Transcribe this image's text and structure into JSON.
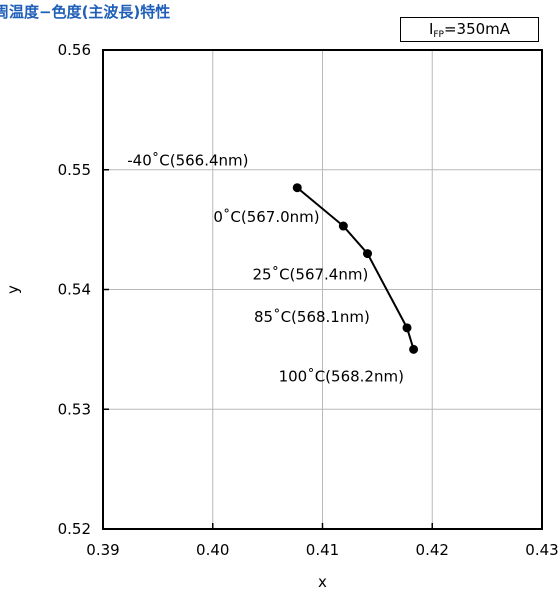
{
  "title": "周温度−色度(主波長)特性",
  "condition": {
    "symbol": "I",
    "subscript": "FP",
    "value": "=350mA"
  },
  "chart_data": {
    "type": "line",
    "title": "周温度−色度(主波長)特性",
    "xlabel": "x",
    "ylabel": "y",
    "xlim": [
      0.39,
      0.43
    ],
    "ylim": [
      0.52,
      0.56
    ],
    "xticks": [
      "0.39",
      "0.40",
      "0.41",
      "0.42",
      "0.43"
    ],
    "yticks": [
      "0.52",
      "0.53",
      "0.54",
      "0.55",
      "0.56"
    ],
    "grid": true,
    "series": [
      {
        "x": [
          0.4077,
          0.4119,
          0.4141,
          0.4177,
          0.4183
        ],
        "y": [
          0.5485,
          0.5453,
          0.543,
          0.5368,
          0.535
        ],
        "labels": [
          "-40˚C(566.4nm)",
          "0˚C(567.0nm)",
          "25˚C(567.4nm)",
          "85˚C(568.1nm)",
          "100˚C(568.2nm)"
        ],
        "color": "#000000"
      }
    ]
  }
}
